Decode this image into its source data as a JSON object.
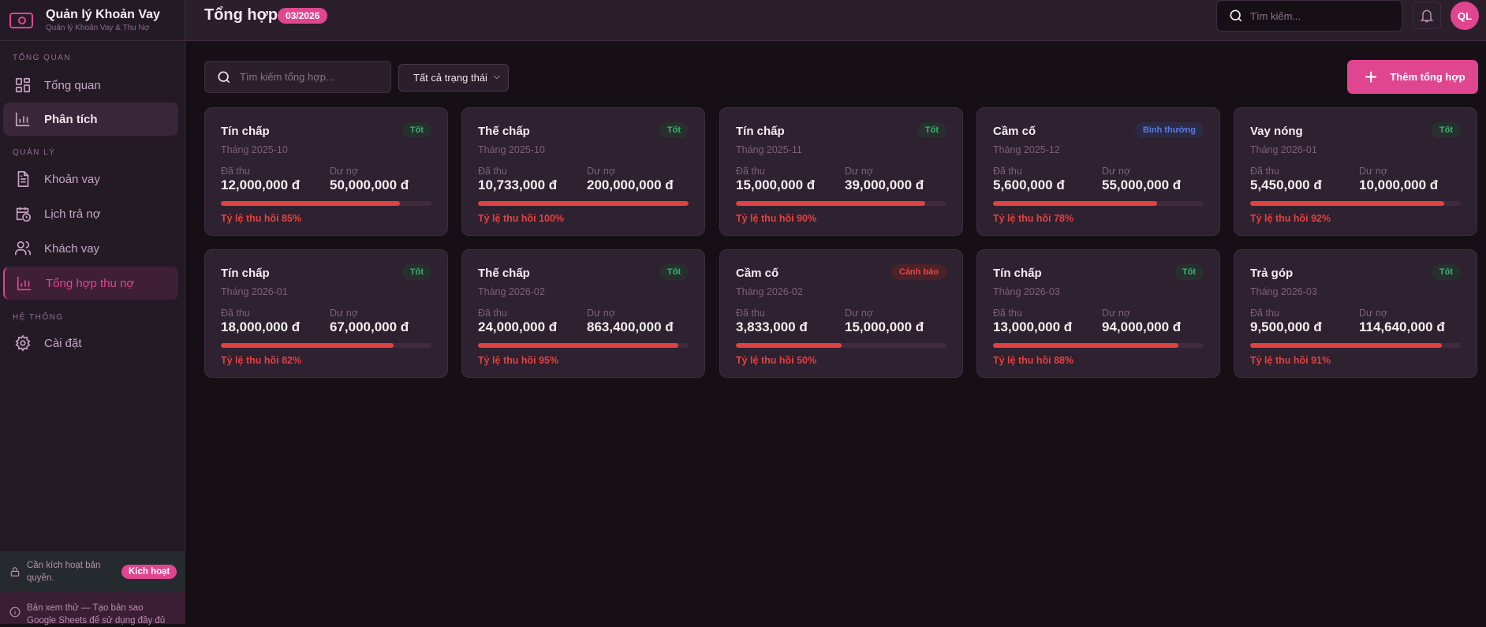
{
  "app": {
    "title": "Quản lý Khoản Vay",
    "subtitle": "Quản lý Khoản Vay & Thu Nợ"
  },
  "sidebar": {
    "sections": [
      "TỔNG QUAN",
      "QUẢN LÝ",
      "HỆ THỐNG"
    ],
    "items": [
      {
        "label": "Tổng quan",
        "icon": "grid-icon"
      },
      {
        "label": "Phân tích",
        "icon": "chart-icon"
      },
      {
        "label": "Khoản vay",
        "icon": "document-icon"
      },
      {
        "label": "Lịch trả nợ",
        "icon": "calendar-clock-icon"
      },
      {
        "label": "Khách vay",
        "icon": "users-icon"
      },
      {
        "label": "Tổng hợp thu nợ",
        "icon": "chart-icon"
      },
      {
        "label": "Cài đặt",
        "icon": "gear-icon"
      }
    ],
    "license": {
      "text": "Cần kích hoạt bản quyền.",
      "button": "Kích hoạt"
    },
    "trial": {
      "text": "Bản xem thử — Tạo bản sao Google Sheets để sử dụng đầy đủ"
    }
  },
  "header": {
    "title": "Tổng hợp",
    "month_badge": "03/2026",
    "search_placeholder": "Tìm kiếm...",
    "avatar": "QL"
  },
  "toolbar": {
    "search_placeholder": "Tìm kiếm tổng hợp...",
    "status_filter": "Tất cả trạng thái",
    "add_label": "Thêm tổng hợp"
  },
  "labels": {
    "collected": "Đã thu",
    "outstanding": "Dư nợ"
  },
  "colors": {
    "accent": "#e0468f",
    "progress": "#e04242",
    "good": "#3bb273",
    "normal": "#5b7be0",
    "warning": "#e04848"
  },
  "cards": [
    {
      "type": "Tín chấp",
      "month": "Tháng 2025-10",
      "status": "Tốt",
      "status_kind": "good",
      "collected": "12,000,000 đ",
      "outstanding": "50,000,000 đ",
      "rate": 85,
      "rate_label": "Tỷ lệ thu hồi 85%"
    },
    {
      "type": "Thế chấp",
      "month": "Tháng 2025-10",
      "status": "Tốt",
      "status_kind": "good",
      "collected": "10,733,000 đ",
      "outstanding": "200,000,000 đ",
      "rate": 100,
      "rate_label": "Tỷ lệ thu hồi 100%"
    },
    {
      "type": "Tín chấp",
      "month": "Tháng 2025-11",
      "status": "Tốt",
      "status_kind": "good",
      "collected": "15,000,000 đ",
      "outstanding": "39,000,000 đ",
      "rate": 90,
      "rate_label": "Tỷ lệ thu hồi 90%"
    },
    {
      "type": "Cầm cố",
      "month": "Tháng 2025-12",
      "status": "Bình thường",
      "status_kind": "normal",
      "collected": "5,600,000 đ",
      "outstanding": "55,000,000 đ",
      "rate": 78,
      "rate_label": "Tỷ lệ thu hồi 78%"
    },
    {
      "type": "Vay nóng",
      "month": "Tháng 2026-01",
      "status": "Tốt",
      "status_kind": "good",
      "collected": "5,450,000 đ",
      "outstanding": "10,000,000 đ",
      "rate": 92,
      "rate_label": "Tỷ lệ thu hồi 92%"
    },
    {
      "type": "Tín chấp",
      "month": "Tháng 2026-01",
      "status": "Tốt",
      "status_kind": "good",
      "collected": "18,000,000 đ",
      "outstanding": "67,000,000 đ",
      "rate": 82,
      "rate_label": "Tỷ lệ thu hồi 82%"
    },
    {
      "type": "Thế chấp",
      "month": "Tháng 2026-02",
      "status": "Tốt",
      "status_kind": "good",
      "collected": "24,000,000 đ",
      "outstanding": "863,400,000 đ",
      "rate": 95,
      "rate_label": "Tỷ lệ thu hồi 95%"
    },
    {
      "type": "Cầm cố",
      "month": "Tháng 2026-02",
      "status": "Cảnh báo",
      "status_kind": "warning",
      "collected": "3,833,000 đ",
      "outstanding": "15,000,000 đ",
      "rate": 50,
      "rate_label": "Tỷ lệ thu hồi 50%"
    },
    {
      "type": "Tín chấp",
      "month": "Tháng 2026-03",
      "status": "Tốt",
      "status_kind": "good",
      "collected": "13,000,000 đ",
      "outstanding": "94,000,000 đ",
      "rate": 88,
      "rate_label": "Tỷ lệ thu hồi 88%"
    },
    {
      "type": "Trả góp",
      "month": "Tháng 2026-03",
      "status": "Tốt",
      "status_kind": "good",
      "collected": "9,500,000 đ",
      "outstanding": "114,640,000 đ",
      "rate": 91,
      "rate_label": "Tỷ lệ thu hồi 91%"
    }
  ]
}
